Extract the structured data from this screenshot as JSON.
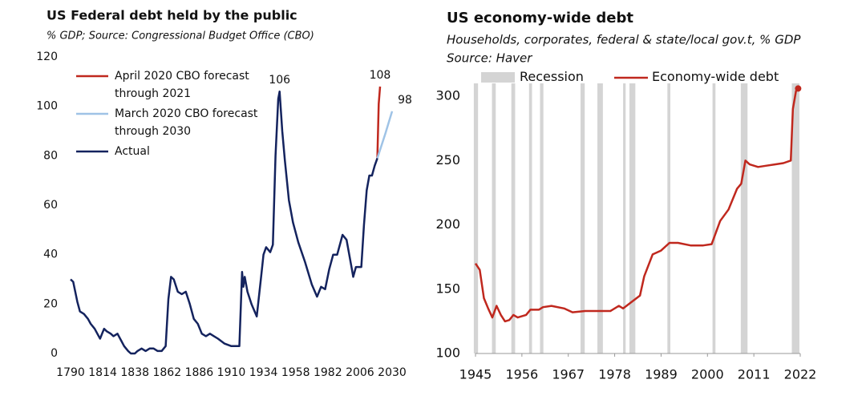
{
  "chart_data": [
    {
      "type": "line",
      "title": "US Federal debt held by the public",
      "subtitle": "% GDP; Source: Congressional Budget Office (CBO)",
      "xlim": [
        1790,
        2030
      ],
      "xticks": [
        1790,
        1814,
        1838,
        1862,
        1886,
        1910,
        1934,
        1958,
        1982,
        2006,
        2030
      ],
      "ylim": [
        0,
        120
      ],
      "yticks": [
        0,
        20,
        40,
        60,
        80,
        100,
        120
      ],
      "series": [
        {
          "name": "April 2020 CBO forecast through 2021",
          "color": "#c0281e",
          "x": [
            2019,
            2020,
            2021
          ],
          "values": [
            79,
            101,
            108
          ]
        },
        {
          "name": "March 2020 CBO forecast through 2030",
          "color": "#9fc3e6",
          "x": [
            2019,
            2022,
            2025,
            2030
          ],
          "values": [
            79,
            84,
            89,
            98
          ]
        },
        {
          "name": "Actual",
          "color": "#14235e",
          "x": [
            1790,
            1792,
            1795,
            1797,
            1800,
            1803,
            1805,
            1808,
            1810,
            1812,
            1815,
            1817,
            1820,
            1822,
            1825,
            1828,
            1830,
            1833,
            1835,
            1838,
            1840,
            1843,
            1846,
            1849,
            1852,
            1855,
            1858,
            1861,
            1863,
            1865,
            1867,
            1870,
            1873,
            1876,
            1879,
            1882,
            1885,
            1888,
            1891,
            1894,
            1897,
            1900,
            1905,
            1910,
            1913,
            1916,
            1918,
            1919,
            1920,
            1922,
            1925,
            1929,
            1932,
            1934,
            1936,
            1939,
            1941,
            1943,
            1945,
            1946,
            1948,
            1950,
            1953,
            1956,
            1960,
            1965,
            1970,
            1974,
            1977,
            1980,
            1983,
            1986,
            1989,
            1993,
            1996,
            2000,
            2001,
            2003,
            2007,
            2009,
            2011,
            2013,
            2015,
            2017,
            2019
          ],
          "values": [
            30,
            29,
            21,
            17,
            16,
            14,
            12,
            10,
            8,
            6,
            10,
            9,
            8,
            7,
            8,
            5,
            3,
            1,
            0,
            0,
            1,
            2,
            1,
            2,
            2,
            1,
            1,
            3,
            22,
            31,
            30,
            25,
            24,
            25,
            20,
            14,
            12,
            8,
            7,
            8,
            7,
            6,
            4,
            3,
            3,
            3,
            33,
            27,
            31,
            25,
            20,
            15,
            30,
            40,
            43,
            41,
            44,
            80,
            103,
            106,
            90,
            78,
            62,
            53,
            45,
            37,
            28,
            23,
            27,
            26,
            34,
            40,
            40,
            48,
            46,
            34,
            31,
            35,
            35,
            52,
            66,
            72,
            72,
            76,
            79
          ]
        }
      ],
      "annotations": [
        {
          "text": "106",
          "x": 1946,
          "y": 106
        },
        {
          "text": "108",
          "x": 2021,
          "y": 108
        },
        {
          "text": "98",
          "x": 2030,
          "y": 98
        }
      ]
    },
    {
      "type": "line",
      "title": "US economy-wide debt",
      "subtitle": "Households, corporates, federal & state/local gov.t, % GDP",
      "source": "Source: Haver",
      "xlim": [
        1945,
        2022
      ],
      "xticks": [
        1945,
        1956,
        1967,
        1978,
        1989,
        2000,
        2011,
        2022
      ],
      "ylim": [
        100,
        310
      ],
      "yticks": [
        100,
        150,
        200,
        250,
        300
      ],
      "recessions": {
        "name": "Recession",
        "color": "#d4d4d4",
        "ranges": [
          [
            1944.6,
            1945.6
          ],
          [
            1948.9,
            1949.8
          ],
          [
            1953.5,
            1954.4
          ],
          [
            1957.7,
            1958.4
          ],
          [
            1960.3,
            1961.1
          ],
          [
            1969.9,
            1970.9
          ],
          [
            1973.9,
            1975.2
          ],
          [
            1980,
            1980.6
          ],
          [
            1981.5,
            1982.9
          ],
          [
            1990.5,
            1991.2
          ],
          [
            2001.2,
            2001.9
          ],
          [
            2007.9,
            2009.5
          ],
          [
            2020,
            2021.8
          ]
        ]
      },
      "series": [
        {
          "name": "Economy-wide debt",
          "color": "#c0281e",
          "x": [
            1945,
            1946,
            1947,
            1948,
            1949,
            1950,
            1951,
            1952,
            1953,
            1954,
            1955,
            1957,
            1958,
            1960,
            1961,
            1963,
            1966,
            1968,
            1971,
            1974,
            1977,
            1979,
            1980,
            1982,
            1984,
            1985,
            1987,
            1989,
            1991,
            1993,
            1996,
            1999,
            2001,
            2003,
            2005,
            2007,
            2008,
            2009,
            2010,
            2012,
            2014,
            2016,
            2018,
            2019.75,
            2020.25,
            2021,
            2021.5
          ],
          "values": [
            170,
            165,
            143,
            135,
            128,
            137,
            130,
            125,
            126,
            130,
            128,
            130,
            134,
            134,
            136,
            137,
            135,
            132,
            133,
            133,
            133,
            137,
            135,
            140,
            145,
            160,
            177,
            180,
            186,
            186,
            184,
            184,
            185,
            203,
            212,
            228,
            232,
            250,
            247,
            245,
            246,
            247,
            248,
            250,
            290,
            304,
            306
          ]
        }
      ]
    }
  ]
}
